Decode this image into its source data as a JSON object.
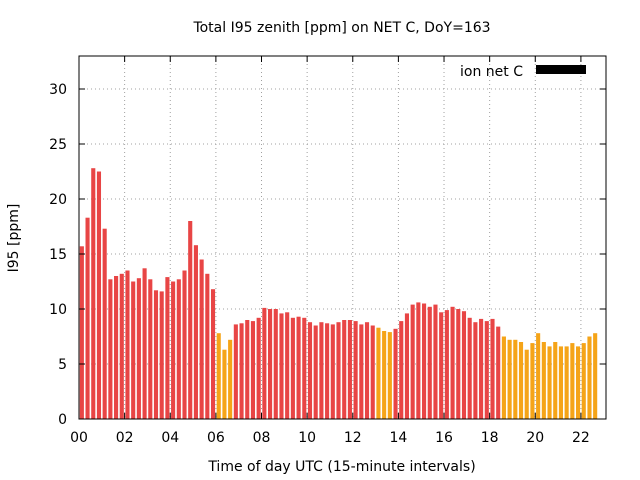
{
  "chart_data": {
    "type": "bar",
    "title": "Total I95 zenith [ppm] on NET C, DoY=163",
    "xlabel": "Time of day UTC (15-minute intervals)",
    "ylabel": "I95 [ppm]",
    "xlim": [
      0,
      23.1
    ],
    "ylim": [
      0,
      33
    ],
    "x_ticks": [
      "00",
      "02",
      "04",
      "06",
      "08",
      "10",
      "12",
      "14",
      "16",
      "18",
      "20",
      "22"
    ],
    "y_ticks": [
      "0",
      "5",
      "10",
      "15",
      "20",
      "25",
      "30"
    ],
    "grid": true,
    "legend": {
      "label": "ion net C",
      "color": "#000000",
      "position": "top-right"
    },
    "colors": {
      "red": "#e84545",
      "orange": "#f5a418"
    },
    "interval_hours": 0.25,
    "values": [
      15.7,
      18.3,
      22.8,
      22.5,
      17.3,
      12.7,
      13.0,
      13.2,
      13.5,
      12.5,
      12.8,
      13.7,
      12.7,
      11.7,
      11.6,
      12.9,
      12.5,
      12.7,
      13.5,
      18.0,
      15.8,
      14.5,
      13.2,
      11.8,
      7.8,
      6.3,
      7.2,
      8.6,
      8.7,
      9.0,
      8.9,
      9.2,
      10.1,
      10.0,
      10.0,
      9.6,
      9.7,
      9.2,
      9.3,
      9.2,
      8.8,
      8.5,
      8.8,
      8.7,
      8.6,
      8.8,
      9.0,
      9.0,
      8.9,
      8.6,
      8.8,
      8.5,
      8.3,
      8.0,
      7.9,
      8.2,
      8.9,
      9.6,
      10.4,
      10.6,
      10.5,
      10.2,
      10.4,
      9.7,
      9.9,
      10.2,
      10.0,
      9.8,
      9.2,
      8.8,
      9.1,
      8.9,
      9.1,
      8.4,
      7.5,
      7.2,
      7.2,
      7.0,
      6.3,
      6.9,
      7.8,
      7.0,
      6.6,
      7.0,
      6.6,
      6.6,
      6.9,
      6.6,
      6.9,
      7.5,
      7.8
    ],
    "bar_colors": [
      "red",
      "red",
      "red",
      "red",
      "red",
      "red",
      "red",
      "red",
      "red",
      "red",
      "red",
      "red",
      "red",
      "red",
      "red",
      "red",
      "red",
      "red",
      "red",
      "red",
      "red",
      "red",
      "red",
      "red",
      "orange",
      "orange",
      "orange",
      "red",
      "red",
      "red",
      "red",
      "red",
      "red",
      "red",
      "red",
      "red",
      "red",
      "red",
      "red",
      "red",
      "red",
      "red",
      "red",
      "red",
      "red",
      "red",
      "red",
      "red",
      "red",
      "red",
      "red",
      "red",
      "orange",
      "orange",
      "orange",
      "red",
      "red",
      "red",
      "red",
      "red",
      "red",
      "red",
      "red",
      "red",
      "red",
      "red",
      "red",
      "red",
      "red",
      "red",
      "red",
      "red",
      "red",
      "red",
      "orange",
      "orange",
      "orange",
      "orange",
      "orange",
      "orange",
      "orange",
      "orange",
      "orange",
      "orange",
      "orange",
      "orange",
      "orange",
      "orange",
      "orange",
      "orange",
      "orange"
    ]
  }
}
